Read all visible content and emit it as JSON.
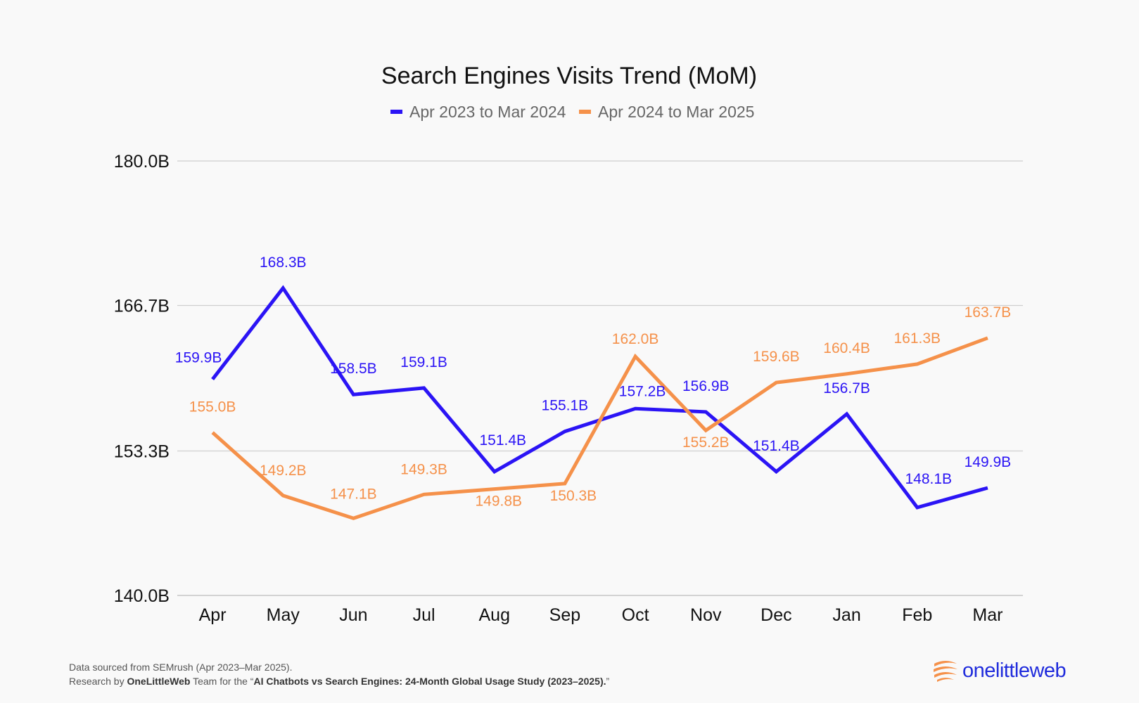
{
  "chart_data": {
    "type": "line",
    "title": "Search Engines Visits Trend (MoM)",
    "categories": [
      "Apr",
      "May",
      "Jun",
      "Jul",
      "Aug",
      "Sep",
      "Oct",
      "Nov",
      "Dec",
      "Jan",
      "Feb",
      "Mar"
    ],
    "series": [
      {
        "name": "Apr 2023 to Mar 2024",
        "color": "#2b14f5",
        "values": [
          159.9,
          168.3,
          158.5,
          159.1,
          151.4,
          155.1,
          157.2,
          156.9,
          151.4,
          156.7,
          148.1,
          149.9
        ],
        "labels": [
          "159.9B",
          "168.3B",
          "158.5B",
          "159.1B",
          "151.4B",
          "155.1B",
          "157.2B",
          "156.9B",
          "151.4B",
          "156.7B",
          "148.1B",
          "149.9B"
        ]
      },
      {
        "name": "Apr 2024 to Mar 2025",
        "color": "#f5914a",
        "values": [
          155.0,
          149.2,
          147.1,
          149.3,
          149.8,
          150.3,
          162.0,
          155.2,
          159.6,
          160.4,
          161.3,
          163.7
        ],
        "labels": [
          "155.0B",
          "149.2B",
          "147.1B",
          "149.3B",
          "149.8B",
          "150.3B",
          "162.0B",
          "155.2B",
          "159.6B",
          "160.4B",
          "161.3B",
          "163.7B"
        ]
      }
    ],
    "ylim": [
      140.0,
      180.0
    ],
    "yticks": [
      140.0,
      153.3,
      166.7,
      180.0
    ],
    "ytick_labels": [
      "140.0B",
      "153.3B",
      "166.7B",
      "180.0B"
    ],
    "xlabel": "",
    "ylabel": "",
    "grid": true,
    "legend_position": "top-center"
  },
  "footer": {
    "source": "Data sourced from SEMrush (Apr 2023–Mar 2025).",
    "research_prefix": "Research by ",
    "research_team": "OneLittleWeb",
    "research_middle": " Team for the “",
    "research_study": "AI Chatbots vs Search Engines: 24-Month Global Usage Study (2023–2025).",
    "research_suffix": "”"
  },
  "logo": {
    "text": "onelittleweb",
    "color": "#1f2bdc",
    "accent": "#f5914a",
    "icon": "stacked-swoosh-icon"
  }
}
